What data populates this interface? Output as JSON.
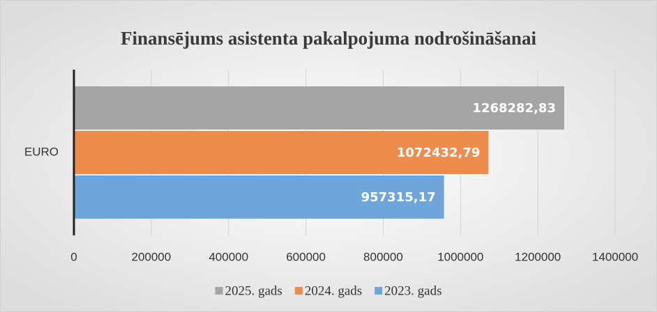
{
  "chart_data": {
    "type": "bar",
    "orientation": "horizontal",
    "title": "Finansējums asistenta pakalpojuma nodrošināšanai",
    "categories": [
      "EURO"
    ],
    "series": [
      {
        "name": "2025. gads",
        "color": "#a5a5a5",
        "values": [
          1268282.83
        ],
        "value_labels": [
          "1268282,83"
        ]
      },
      {
        "name": "2024. gads",
        "color": "#ed8c4d",
        "values": [
          1072432.79
        ],
        "value_labels": [
          "1072432,79"
        ]
      },
      {
        "name": "2023. gads",
        "color": "#6ea6dc",
        "values": [
          957315.17
        ],
        "value_labels": [
          "957315,17"
        ]
      }
    ],
    "xlim": [
      0,
      1400000
    ],
    "xticks": [
      0,
      200000,
      400000,
      600000,
      800000,
      1000000,
      1200000,
      1400000
    ],
    "grid": true,
    "legend": "bottom"
  }
}
